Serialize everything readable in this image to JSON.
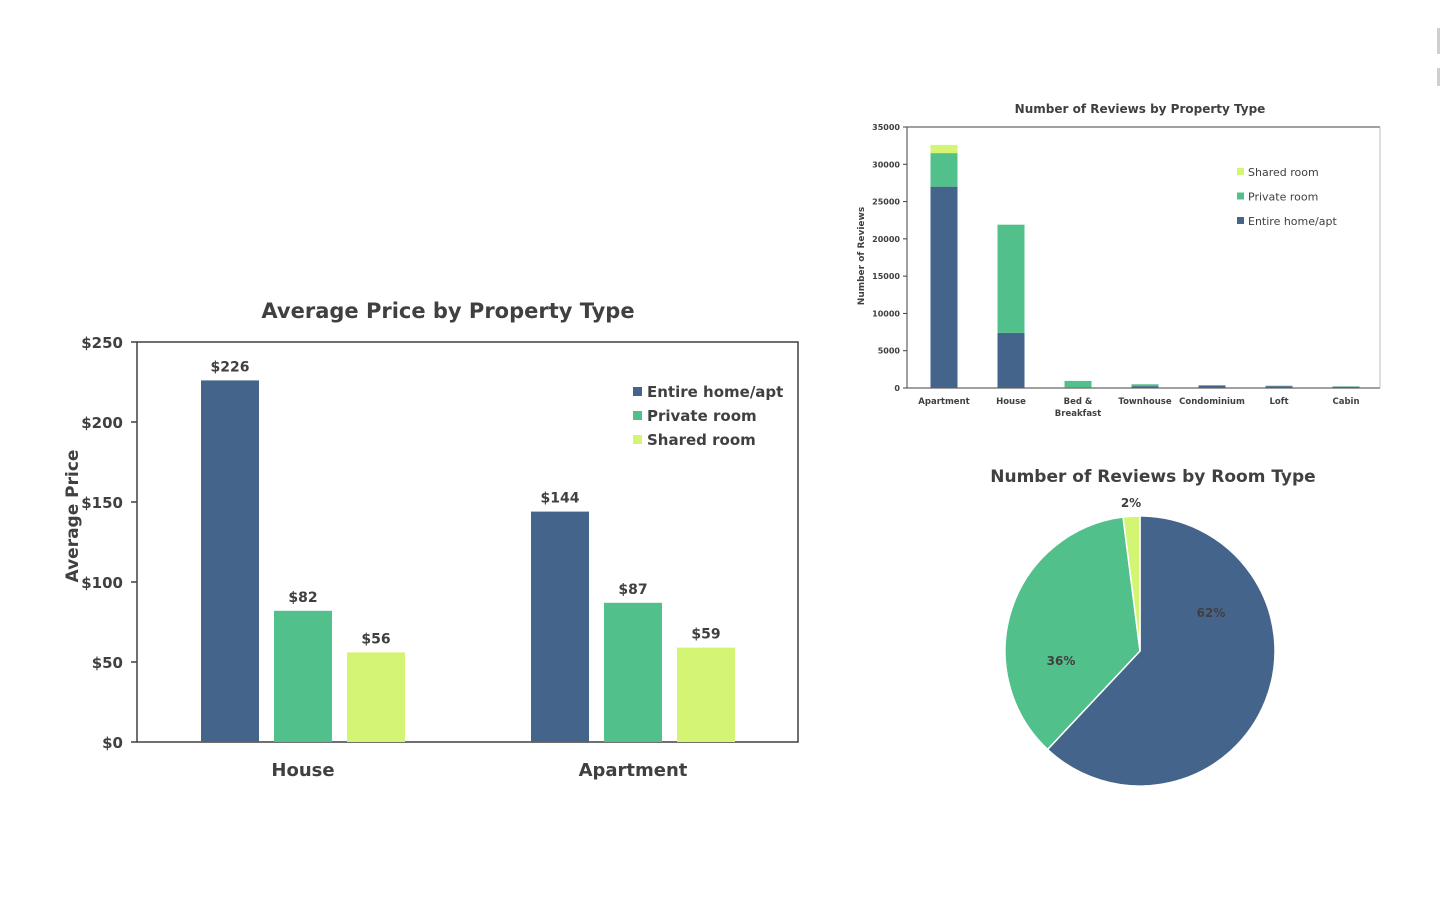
{
  "colors": {
    "entire": "#44648C",
    "private": "#52C08A",
    "shared": "#D4F573",
    "axis": "#404040"
  },
  "chart_data": [
    {
      "type": "bar",
      "title": "Average Price by Property Type",
      "ylabel": "Average Price",
      "xlabel": "",
      "categories": [
        "House",
        "Apartment"
      ],
      "ylim": [
        0,
        250
      ],
      "yticks": [
        "$0",
        "$50",
        "$100",
        "$150",
        "$200",
        "$250"
      ],
      "legend_position": "top-right",
      "series": [
        {
          "name": "Entire home/apt",
          "values": [
            226,
            144
          ],
          "labels": [
            "$226",
            "$144"
          ]
        },
        {
          "name": "Private room",
          "values": [
            82,
            87
          ],
          "labels": [
            "$82",
            "$87"
          ]
        },
        {
          "name": "Shared room",
          "values": [
            56,
            59
          ],
          "labels": [
            "$56",
            "$59"
          ]
        }
      ],
      "grid": false
    },
    {
      "type": "bar",
      "stacked": true,
      "title": "Number of Reviews by Property Type",
      "ylabel": "Number of Reviews",
      "xlabel": "",
      "categories": [
        "Apartment",
        "House",
        "Bed & Breakfast",
        "Townhouse",
        "Condominium",
        "Loft",
        "Cabin"
      ],
      "ylim": [
        0,
        35000
      ],
      "yticks": [
        "0",
        "5000",
        "10000",
        "15000",
        "20000",
        "25000",
        "30000",
        "35000"
      ],
      "legend_position": "top-right",
      "legend_order": [
        "Shared room",
        "Private room",
        "Entire home/apt"
      ],
      "series": [
        {
          "name": "Entire home/apt",
          "values": [
            27000,
            7400,
            100,
            250,
            300,
            250,
            180
          ]
        },
        {
          "name": "Private room",
          "values": [
            4500,
            14500,
            850,
            250,
            100,
            60,
            40
          ]
        },
        {
          "name": "Shared room",
          "values": [
            1100,
            0,
            0,
            0,
            0,
            0,
            0
          ]
        }
      ],
      "grid": false
    },
    {
      "type": "pie",
      "title": "Number of Reviews by Room Type",
      "slices": [
        {
          "name": "Entire home/apt",
          "value": 62,
          "label": "62%"
        },
        {
          "name": "Private room",
          "value": 36,
          "label": "36%"
        },
        {
          "name": "Shared room",
          "value": 2,
          "label": "2%"
        }
      ],
      "legend_position": "none"
    }
  ]
}
